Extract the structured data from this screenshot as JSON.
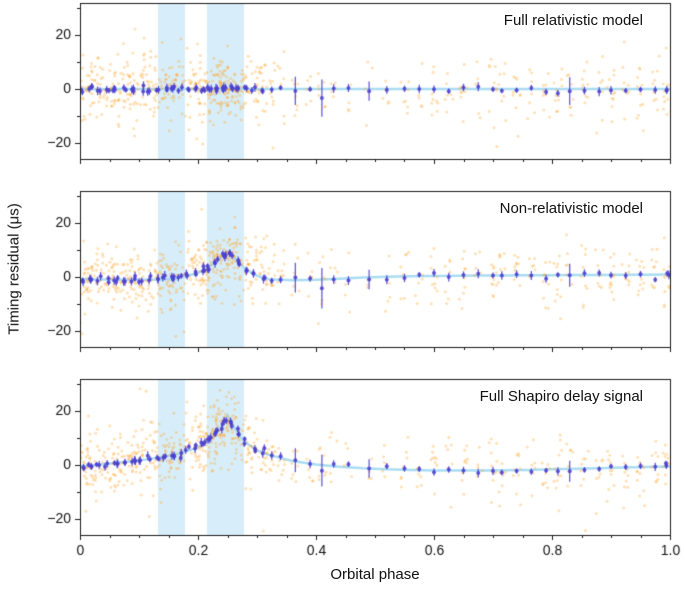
{
  "chart_data": {
    "type": "scatter",
    "axes": {
      "xlabel": "Orbital phase",
      "ylabel": "Timing residual (μs)",
      "xlim": [
        0,
        1
      ],
      "ylim": [
        -26,
        32
      ],
      "x_ticks": [
        0,
        0.2,
        0.4,
        0.6,
        0.8,
        1.0
      ],
      "x_tick_labels": [
        "0",
        "0.2",
        "0.4",
        "0.6",
        "0.8",
        "1.0"
      ],
      "x_minor_step": 0.05,
      "y_ticks": [
        -20,
        0,
        20
      ],
      "y_tick_labels": [
        "−20",
        "0",
        "20"
      ],
      "y_minor_ticks": [
        -10,
        10,
        30
      ],
      "grid": false,
      "legend": "none"
    },
    "bands": [
      [
        0.132,
        0.178
      ],
      [
        0.215,
        0.278
      ]
    ],
    "clusters": [
      [
        0.005,
        16
      ],
      [
        0.018,
        20
      ],
      [
        0.032,
        18
      ],
      [
        0.046,
        14
      ],
      [
        0.06,
        20
      ],
      [
        0.075,
        16
      ],
      [
        0.09,
        22
      ],
      [
        0.104,
        18
      ],
      [
        0.118,
        14
      ],
      [
        0.131,
        18
      ],
      [
        0.144,
        16
      ],
      [
        0.157,
        20
      ],
      [
        0.17,
        14
      ],
      [
        0.183,
        12
      ],
      [
        0.196,
        18
      ],
      [
        0.208,
        22
      ],
      [
        0.22,
        24
      ],
      [
        0.232,
        26
      ],
      [
        0.244,
        28
      ],
      [
        0.256,
        24
      ],
      [
        0.268,
        20
      ],
      [
        0.281,
        16
      ],
      [
        0.295,
        14
      ],
      [
        0.31,
        16
      ],
      [
        0.325,
        10
      ],
      [
        0.34,
        9
      ],
      [
        0.365,
        7
      ],
      [
        0.39,
        5
      ],
      [
        0.41,
        7
      ],
      [
        0.43,
        5
      ],
      [
        0.455,
        4
      ],
      [
        0.49,
        4
      ],
      [
        0.52,
        5
      ],
      [
        0.55,
        7
      ],
      [
        0.575,
        5
      ],
      [
        0.6,
        9
      ],
      [
        0.625,
        7
      ],
      [
        0.65,
        9
      ],
      [
        0.675,
        5
      ],
      [
        0.7,
        11
      ],
      [
        0.715,
        7
      ],
      [
        0.74,
        9
      ],
      [
        0.765,
        7
      ],
      [
        0.79,
        9
      ],
      [
        0.81,
        11
      ],
      [
        0.83,
        7
      ],
      [
        0.855,
        9
      ],
      [
        0.88,
        7
      ],
      [
        0.9,
        11
      ],
      [
        0.925,
        9
      ],
      [
        0.95,
        11
      ],
      [
        0.975,
        9
      ],
      [
        0.995,
        12
      ]
    ],
    "special_errors": {
      "0.365": 4.5,
      "0.41": 6.0,
      "0.49": 3.0,
      "0.83": 4.0
    },
    "special_offsets": {
      "0.41": -3.0
    },
    "default_error": 1.3,
    "scatter_sigma": 6.0,
    "blue_sigma": 0.7,
    "curve_x": [
      0,
      0.04,
      0.08,
      0.12,
      0.16,
      0.2,
      0.22,
      0.23,
      0.24,
      0.245,
      0.25,
      0.255,
      0.26,
      0.27,
      0.28,
      0.3,
      0.32,
      0.36,
      0.4,
      0.44,
      0.48,
      0.52,
      0.56,
      0.6,
      0.64,
      0.68,
      0.72,
      0.76,
      0.8,
      0.84,
      0.88,
      0.92,
      0.96,
      1.0
    ],
    "panels": [
      {
        "title": "Full relativistic model",
        "curve_y": [
          0,
          0,
          0,
          0,
          0,
          0,
          0,
          0,
          0,
          0,
          0,
          0,
          0,
          0,
          0,
          0,
          0,
          0,
          0,
          0,
          0,
          0,
          0,
          0,
          0,
          0,
          0,
          0,
          0,
          0,
          0,
          0,
          0,
          0
        ]
      },
      {
        "title": "Non-relativistic model",
        "curve_y": [
          -0.8,
          -0.9,
          -1.0,
          -1.0,
          -0.6,
          1.5,
          4.0,
          5.5,
          7.5,
          8.5,
          9.0,
          8.5,
          7.5,
          5.0,
          3.0,
          0.5,
          -0.8,
          -1.2,
          -1.0,
          -0.6,
          -0.2,
          0.1,
          0.3,
          0.4,
          0.5,
          0.6,
          0.6,
          0.7,
          0.7,
          0.8,
          0.8,
          0.9,
          0.9,
          1.0
        ]
      },
      {
        "title": "Full Shapiro delay signal",
        "curve_y": [
          -0.5,
          0.3,
          1.2,
          2.3,
          3.8,
          6.5,
          9.5,
          11.5,
          14.5,
          16.5,
          18.5,
          16.5,
          14.5,
          11.0,
          8.5,
          5.5,
          3.8,
          1.5,
          0.2,
          -0.6,
          -1.2,
          -1.6,
          -1.8,
          -2.0,
          -2.0,
          -2.0,
          -1.9,
          -1.8,
          -1.6,
          -1.4,
          -1.2,
          -0.9,
          -0.7,
          -0.5
        ]
      }
    ]
  },
  "colors": {
    "scatter": "rgba(255,158,28,0.32)",
    "binned": "#4b3fd0",
    "curve": "#aadcf2",
    "band": "rgba(182,224,246,0.55)",
    "frame": "#1a1a1a",
    "text": "#111111"
  }
}
